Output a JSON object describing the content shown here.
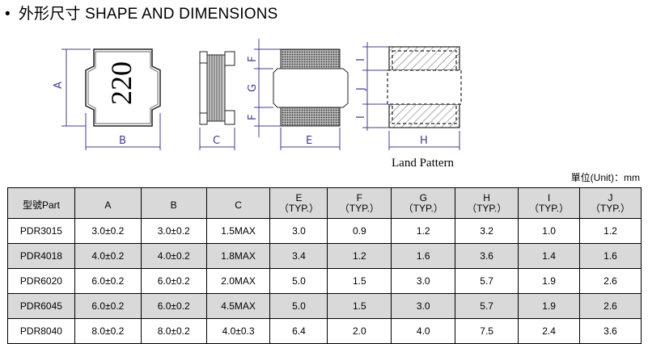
{
  "title": {
    "bullet": "•",
    "text": "外形尺寸 SHAPE AND DIMENSIONS"
  },
  "drawing": {
    "marking": "220",
    "labels": {
      "A": "A",
      "B": "B",
      "C": "C",
      "E": "E",
      "F": "F",
      "G": "G",
      "H": "H",
      "I": "I",
      "J": "J"
    },
    "land_pattern_caption": "Land Pattern",
    "line_color": "#4b3a8c"
  },
  "unit_note": "單位(Unit)：mm",
  "table": {
    "headers": [
      {
        "top": "",
        "bottom": "型號Part"
      },
      {
        "top": "",
        "bottom": "A"
      },
      {
        "top": "",
        "bottom": "B"
      },
      {
        "top": "",
        "bottom": "C"
      },
      {
        "top": "E",
        "bottom": "（TYP.）"
      },
      {
        "top": "F",
        "bottom": "（TYP.）"
      },
      {
        "top": "G",
        "bottom": "（TYP.）"
      },
      {
        "top": "H",
        "bottom": "（TYP.）"
      },
      {
        "top": "I",
        "bottom": "（TYP.）"
      },
      {
        "top": "J",
        "bottom": "（TYP.）"
      }
    ],
    "rows": [
      [
        "PDR3015",
        "3.0±0.2",
        "3.0±0.2",
        "1.5MAX",
        "3.0",
        "0.9",
        "1.2",
        "3.2",
        "1.0",
        "1.2"
      ],
      [
        "PDR4018",
        "4.0±0.2",
        "4.0±0.2",
        "1.8MAX",
        "3.4",
        "1.2",
        "1.6",
        "3.6",
        "1.4",
        "1.6"
      ],
      [
        "PDR6020",
        "6.0±0.2",
        "6.0±0.2",
        "2.0MAX",
        "5.0",
        "1.5",
        "3.0",
        "5.7",
        "1.9",
        "2.6"
      ],
      [
        "PDR6045",
        "6.0±0.2",
        "6.0±0.2",
        "4.5MAX",
        "5.0",
        "1.5",
        "3.0",
        "5.7",
        "1.9",
        "2.6"
      ],
      [
        "PDR8040",
        "8.0±0.2",
        "8.0±0.2",
        "4.0±0.3",
        "6.4",
        "2.0",
        "4.0",
        "7.5",
        "2.4",
        "3.6"
      ]
    ]
  }
}
